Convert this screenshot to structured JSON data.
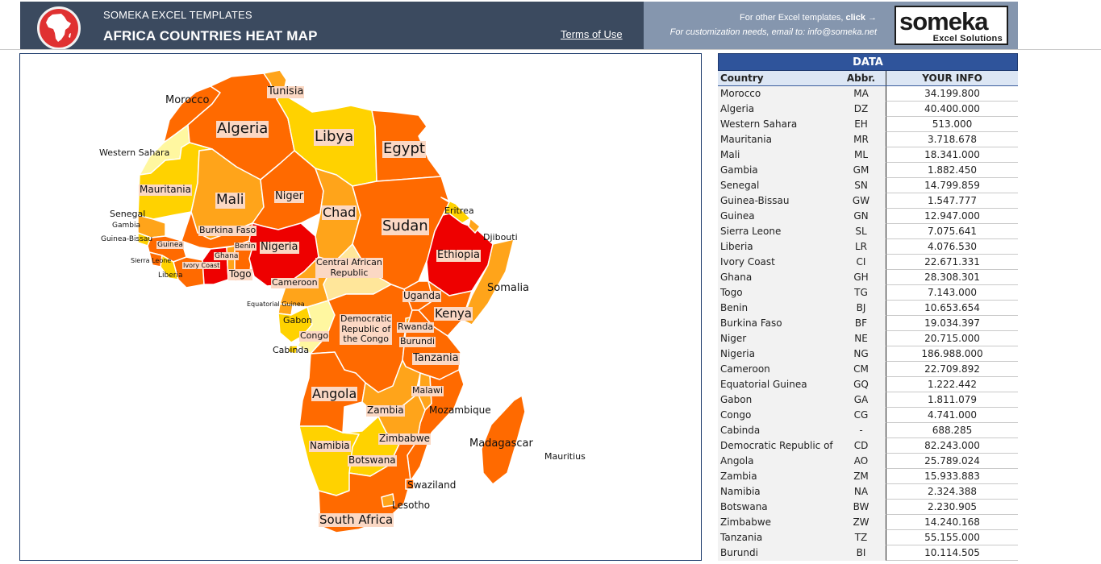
{
  "header": {
    "subtitle": "SOMEKA EXCEL TEMPLATES",
    "title": "AFRICA COUNTRIES HEAT MAP",
    "terms_link": "Terms of Use",
    "other_templates_text": "For other Excel templates, ",
    "other_templates_click": "click →",
    "customization_text": "For customization needs, email to: info@someka.net",
    "brand_name": "someka",
    "brand_tagline": "Excel Solutions",
    "logo_icon": "africa-map-icon",
    "colors": {
      "header_dark": "#3b4a5f",
      "header_light": "#8596ae",
      "logo_red": "#e03131"
    }
  },
  "map": {
    "heat_scale_colors": [
      "#fff7a0",
      "#ffd200",
      "#ffa41a",
      "#ff6a00",
      "#ee0000"
    ],
    "labels": {
      "morocco": "Morocco",
      "tunisia": "Tunisia",
      "algeria": "Algeria",
      "libya": "Libya",
      "egypt": "Egypt",
      "western_sahara": "Western Sahara",
      "mauritania": "Mauritania",
      "mali": "Mali",
      "niger": "Niger",
      "chad": "Chad",
      "sudan": "Sudan",
      "eritrea": "Eritrea",
      "djibouti": "Djibouti",
      "senegal": "Senegal",
      "gambia": "Gambia",
      "guinea_bissau": "Guinea-Bissau",
      "guinea": "Guinea",
      "burkina_faso": "Burkina Faso",
      "nigeria": "Nigeria",
      "ethiopia": "Ethiopia",
      "benin": "Benin",
      "ghana": "Ghana",
      "sierra_leone": "Sierra Leone",
      "ivory_coast": "Ivory Coast",
      "liberia": "Liberia",
      "togo": "Togo",
      "car_line1": "Central African",
      "car_line2": "Republic",
      "cameroon": "Cameroon",
      "somalia": "Somalia",
      "equatorial_guinea": "Equatorial Guinea",
      "uganda": "Uganda",
      "kenya": "Kenya",
      "gabon": "Gabon",
      "drc_line1": "Democratic",
      "drc_line2": "Republic of",
      "drc_line3": "the Congo",
      "rwanda": "Rwanda",
      "burundi": "Burundi",
      "congo": "Congo",
      "cabinda": "Cabinda",
      "tanzania": "Tanzania",
      "angola": "Angola",
      "malawi": "Malawi",
      "zambia": "Zambia",
      "mozambique": "Mozambique",
      "madagascar": "Madagascar",
      "mauritius": "Mauritius",
      "namibia": "Namibia",
      "zimbabwe": "Zimbabwe",
      "botswana": "Botswana",
      "swaziland": "Swaziland",
      "lesotho": "Lesotho",
      "south_africa": "South Africa"
    }
  },
  "table": {
    "title": "DATA",
    "headers": {
      "country": "Country",
      "abbr": "Abbr.",
      "info": "YOUR INFO"
    },
    "rows": [
      {
        "country": "Morocco",
        "abbr": "MA",
        "value": "34.199.800"
      },
      {
        "country": "Algeria",
        "abbr": "DZ",
        "value": "40.400.000"
      },
      {
        "country": "Western Sahara",
        "abbr": "EH",
        "value": "513.000"
      },
      {
        "country": "Mauritania",
        "abbr": "MR",
        "value": "3.718.678"
      },
      {
        "country": "Mali",
        "abbr": "ML",
        "value": "18.341.000"
      },
      {
        "country": "Gambia",
        "abbr": "GM",
        "value": "1.882.450"
      },
      {
        "country": "Senegal",
        "abbr": "SN",
        "value": "14.799.859"
      },
      {
        "country": "Guinea-Bissau",
        "abbr": "GW",
        "value": "1.547.777"
      },
      {
        "country": "Guinea",
        "abbr": "GN",
        "value": "12.947.000"
      },
      {
        "country": "Sierra Leone",
        "abbr": "SL",
        "value": "7.075.641"
      },
      {
        "country": "Liberia",
        "abbr": "LR",
        "value": "4.076.530"
      },
      {
        "country": "Ivory Coast",
        "abbr": "CI",
        "value": "22.671.331"
      },
      {
        "country": "Ghana",
        "abbr": "GH",
        "value": "28.308.301"
      },
      {
        "country": "Togo",
        "abbr": "TG",
        "value": "7.143.000"
      },
      {
        "country": "Benin",
        "abbr": "BJ",
        "value": "10.653.654"
      },
      {
        "country": "Burkina Faso",
        "abbr": "BF",
        "value": "19.034.397"
      },
      {
        "country": "Niger",
        "abbr": "NE",
        "value": "20.715.000"
      },
      {
        "country": "Nigeria",
        "abbr": "NG",
        "value": "186.988.000"
      },
      {
        "country": "Cameroon",
        "abbr": "CM",
        "value": "22.709.892"
      },
      {
        "country": "Equatorial Guinea",
        "abbr": "GQ",
        "value": "1.222.442"
      },
      {
        "country": "Gabon",
        "abbr": "GA",
        "value": "1.811.079"
      },
      {
        "country": "Congo",
        "abbr": "CG",
        "value": "4.741.000"
      },
      {
        "country": "Cabinda",
        "abbr": "-",
        "value": "688.285"
      },
      {
        "country": "Democratic Republic of",
        "abbr": "CD",
        "value": "82.243.000"
      },
      {
        "country": "Angola",
        "abbr": "AO",
        "value": "25.789.024"
      },
      {
        "country": "Zambia",
        "abbr": "ZM",
        "value": "15.933.883"
      },
      {
        "country": "Namibia",
        "abbr": "NA",
        "value": "2.324.388"
      },
      {
        "country": "Botswana",
        "abbr": "BW",
        "value": "2.230.905"
      },
      {
        "country": "Zimbabwe",
        "abbr": "ZW",
        "value": "14.240.168"
      },
      {
        "country": "Tanzania",
        "abbr": "TZ",
        "value": "55.155.000"
      },
      {
        "country": "Burundi",
        "abbr": "BI",
        "value": "10.114.505"
      }
    ],
    "colors": {
      "title_bg": "#2f549b",
      "header_bg": "#dce6f4"
    }
  }
}
